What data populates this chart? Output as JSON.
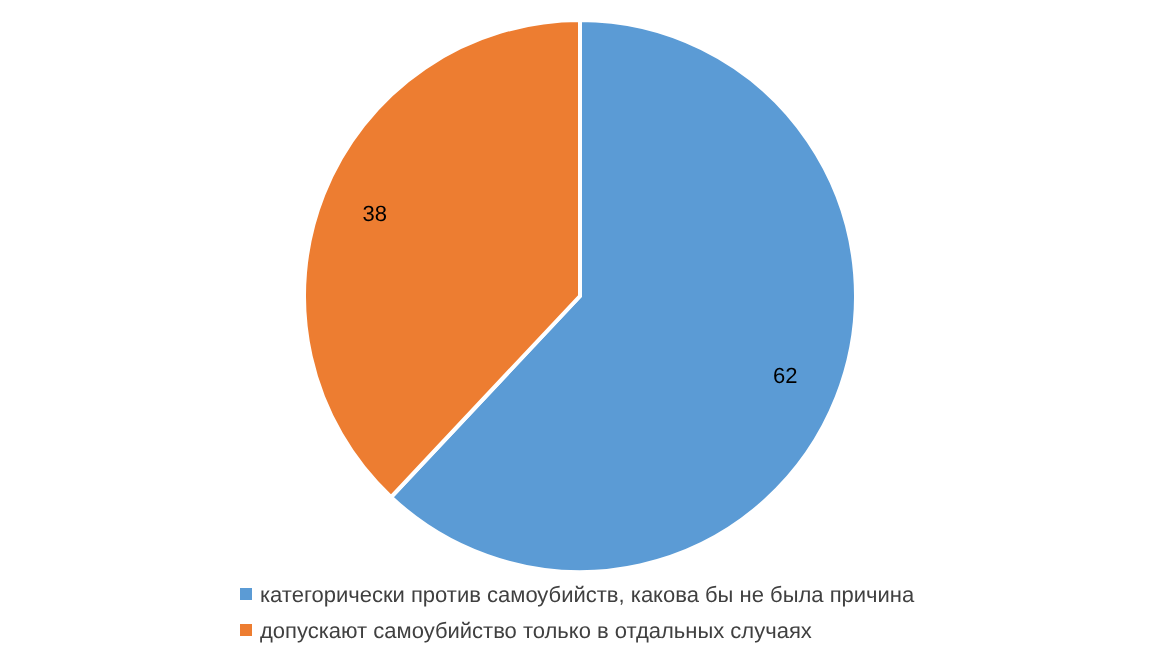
{
  "chart_data": {
    "type": "pie",
    "categories": [
      "категорически против самоубийств, какова бы не была причина",
      "допускают самоубийство только в отдальных случаях"
    ],
    "values": [
      62,
      38
    ],
    "colors": [
      "#5b9bd5",
      "#ed7d31"
    ],
    "data_labels": true,
    "legend": "bottom"
  }
}
